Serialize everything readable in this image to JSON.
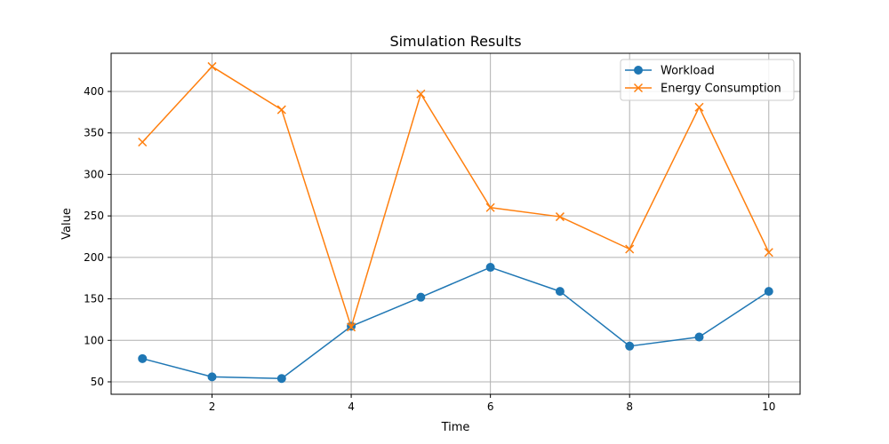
{
  "chart_data": {
    "type": "line",
    "title": "Simulation Results",
    "xlabel": "Time",
    "ylabel": "Value",
    "x": [
      1,
      2,
      3,
      4,
      5,
      6,
      7,
      8,
      9,
      10
    ],
    "xlim": [
      0.55,
      10.45
    ],
    "ylim": [
      35,
      446
    ],
    "xticks": [
      2,
      4,
      6,
      8,
      10
    ],
    "yticks": [
      50,
      100,
      150,
      200,
      250,
      300,
      350,
      400
    ],
    "grid": true,
    "legend_position": "top-right",
    "series": [
      {
        "name": "Workload",
        "color": "#1f77b4",
        "marker": "circle",
        "values": [
          78,
          56,
          54,
          117,
          152,
          188,
          159,
          93,
          104,
          159
        ]
      },
      {
        "name": "Energy Consumption",
        "color": "#ff7f0e",
        "marker": "x",
        "values": [
          339,
          430,
          378,
          116,
          397,
          260,
          249,
          210,
          381,
          206
        ]
      }
    ]
  }
}
